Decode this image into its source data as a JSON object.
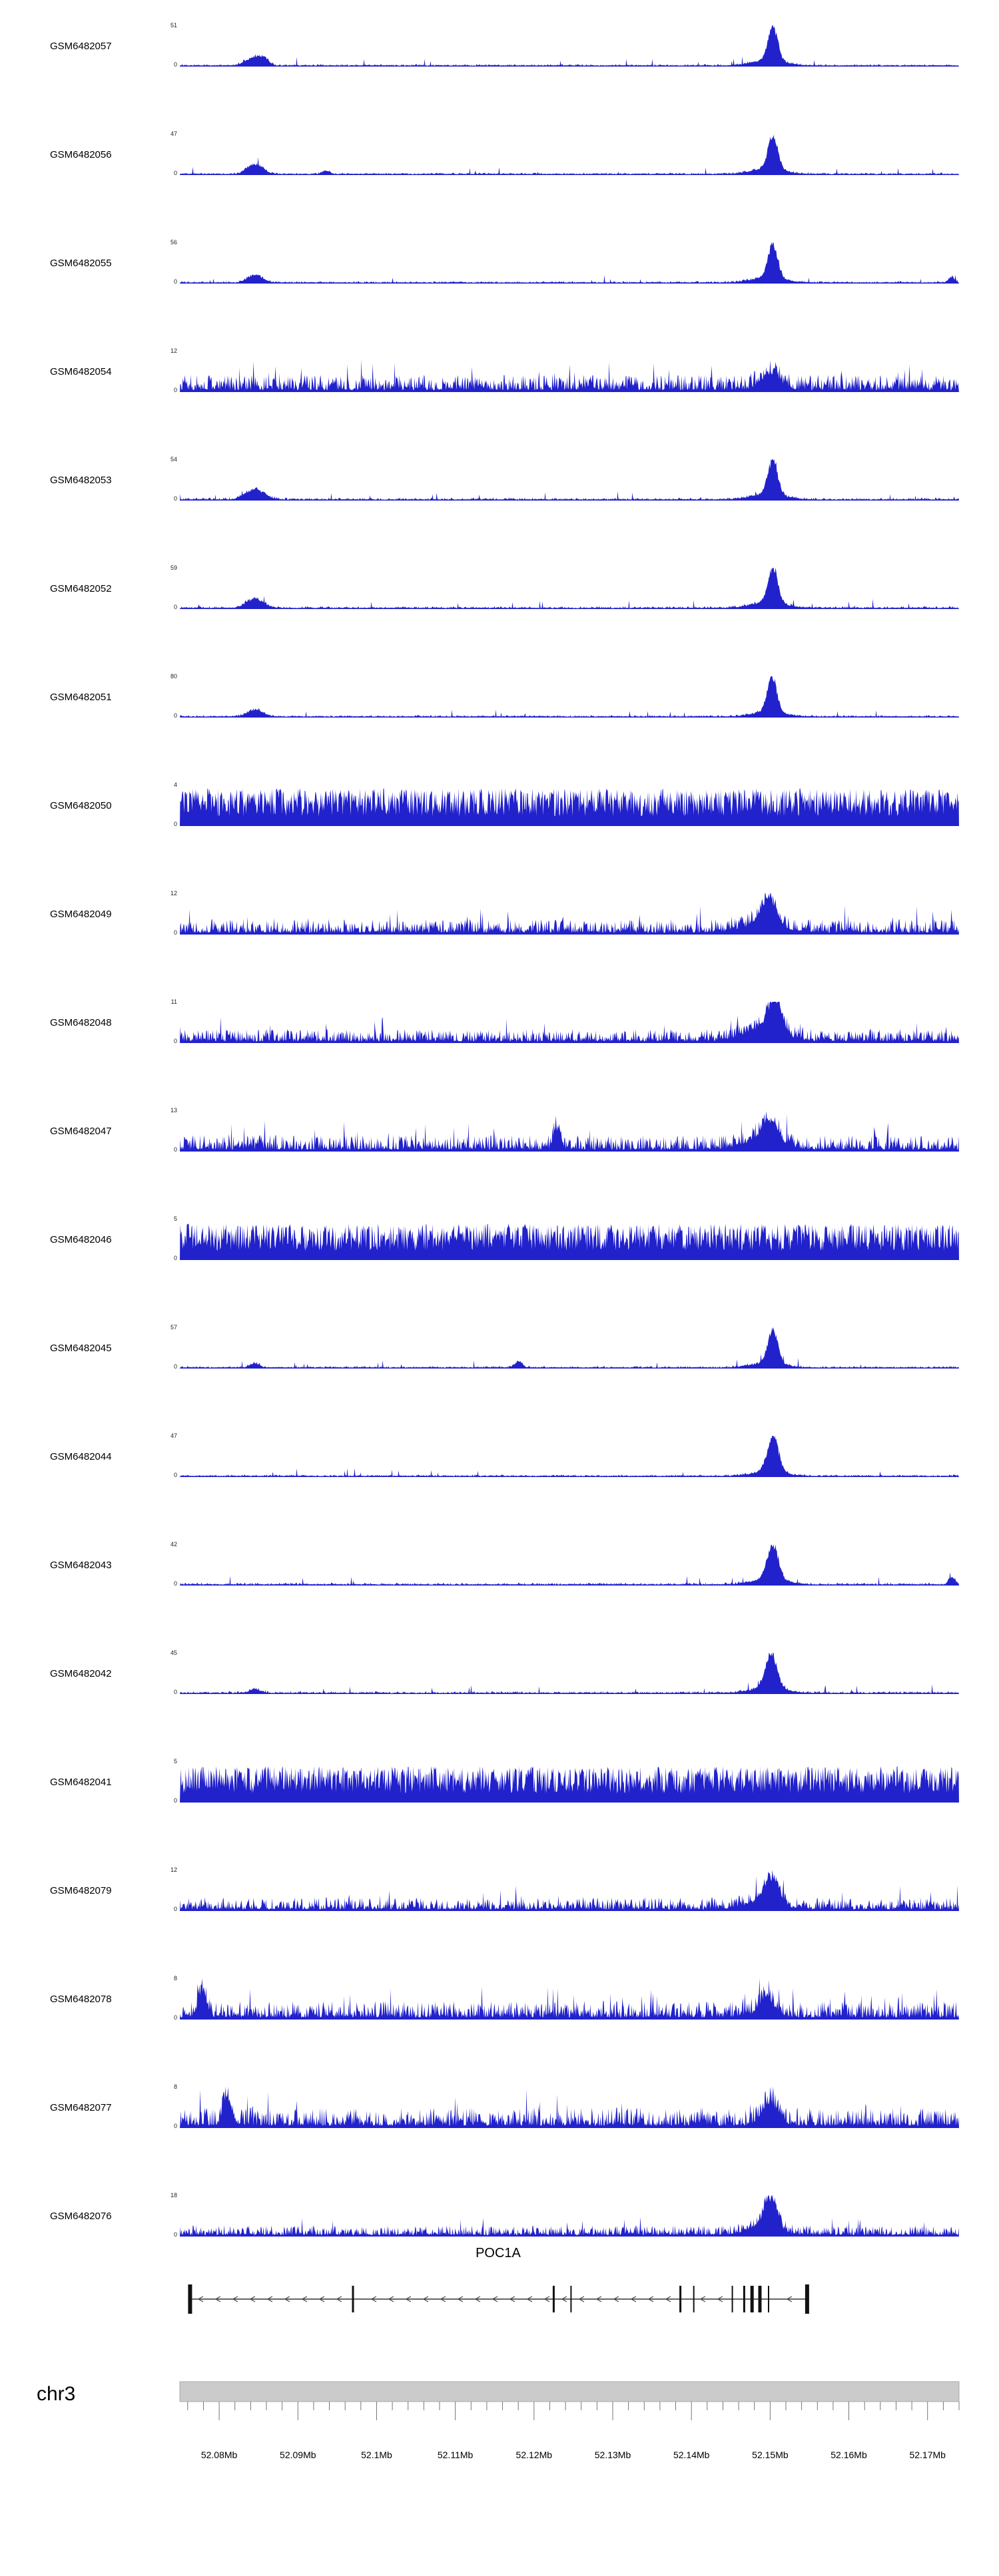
{
  "chart_data": {
    "type": "area",
    "description": "Stacked genome-browser read-coverage tracks (blue area signal) for 21 GEO samples over chr3 around the POC1A gene, with gene model and chromosome coordinate ruler",
    "chromosome": "chr3",
    "signal_color": "#2222cc",
    "x_axis": {
      "min": 52.075,
      "max": 52.174,
      "unit": "Mb",
      "major_tick_step": 0.01,
      "minor_tick_step": 0.002,
      "tick_positions": [
        52.08,
        52.09,
        52.1,
        52.11,
        52.12,
        52.13,
        52.14,
        52.15,
        52.16,
        52.17
      ],
      "tick_labels": [
        "52.08Mb",
        "52.09Mb",
        "52.1Mb",
        "52.11Mb",
        "52.12Mb",
        "52.13Mb",
        "52.14Mb",
        "52.15Mb",
        "52.16Mb",
        "52.17Mb"
      ]
    },
    "tracks": [
      {
        "name": "GSM6482057",
        "ymax": 51,
        "ymin": 0,
        "profile": "peaky",
        "noise": 0.05,
        "peaks": [
          {
            "c": 52.0845,
            "h": 0.26,
            "w": 0.0011
          },
          {
            "c": 52.0858,
            "h": 0.12,
            "w": 0.0005
          },
          {
            "c": 52.1497,
            "h": 0.15,
            "w": 0.0022
          },
          {
            "c": 52.1503,
            "h": 1.0,
            "w": 0.0006
          }
        ]
      },
      {
        "name": "GSM6482056",
        "ymax": 47,
        "ymin": 0,
        "profile": "peaky",
        "noise": 0.05,
        "peaks": [
          {
            "c": 52.0845,
            "h": 0.3,
            "w": 0.001
          },
          {
            "c": 52.0935,
            "h": 0.1,
            "w": 0.0005
          },
          {
            "c": 52.1497,
            "h": 0.15,
            "w": 0.0022
          },
          {
            "c": 52.1503,
            "h": 1.0,
            "w": 0.0006
          }
        ]
      },
      {
        "name": "GSM6482055",
        "ymax": 56,
        "ymin": 0,
        "profile": "peaky",
        "noise": 0.05,
        "peaks": [
          {
            "c": 52.0845,
            "h": 0.22,
            "w": 0.001
          },
          {
            "c": 52.1497,
            "h": 0.14,
            "w": 0.0022
          },
          {
            "c": 52.1503,
            "h": 1.0,
            "w": 0.0006
          },
          {
            "c": 52.173,
            "h": 0.16,
            "w": 0.0004
          }
        ]
      },
      {
        "name": "GSM6482054",
        "ymax": 12,
        "ymin": 0,
        "profile": "noisy",
        "noise": 0.42,
        "peaks": [
          {
            "c": 52.15,
            "h": 0.45,
            "w": 0.0012
          }
        ]
      },
      {
        "name": "GSM6482053",
        "ymax": 54,
        "ymin": 0,
        "profile": "peaky",
        "noise": 0.06,
        "peaks": [
          {
            "c": 52.0845,
            "h": 0.3,
            "w": 0.0012
          },
          {
            "c": 52.1497,
            "h": 0.15,
            "w": 0.0022
          },
          {
            "c": 52.1503,
            "h": 1.0,
            "w": 0.0006
          }
        ]
      },
      {
        "name": "GSM6482052",
        "ymax": 59,
        "ymin": 0,
        "profile": "peaky",
        "noise": 0.06,
        "peaks": [
          {
            "c": 52.0845,
            "h": 0.26,
            "w": 0.0011
          },
          {
            "c": 52.1497,
            "h": 0.16,
            "w": 0.0022
          },
          {
            "c": 52.1503,
            "h": 1.0,
            "w": 0.0006
          }
        ]
      },
      {
        "name": "GSM6482051",
        "ymax": 80,
        "ymin": 0,
        "profile": "peaky",
        "noise": 0.05,
        "peaks": [
          {
            "c": 52.0845,
            "h": 0.2,
            "w": 0.001
          },
          {
            "c": 52.1497,
            "h": 0.13,
            "w": 0.0022
          },
          {
            "c": 52.1502,
            "h": 1.0,
            "w": 0.0006
          }
        ]
      },
      {
        "name": "GSM6482050",
        "ymax": 4,
        "ymin": 0,
        "profile": "dense",
        "noise": 0.92,
        "peaks": []
      },
      {
        "name": "GSM6482049",
        "ymax": 12,
        "ymin": 0,
        "profile": "noisy",
        "noise": 0.38,
        "peaks": [
          {
            "c": 52.149,
            "h": 0.25,
            "w": 0.0025
          },
          {
            "c": 52.1498,
            "h": 0.75,
            "w": 0.0009
          }
        ]
      },
      {
        "name": "GSM6482048",
        "ymax": 11,
        "ymin": 0,
        "profile": "noisy",
        "noise": 0.34,
        "peaks": [
          {
            "c": 52.149,
            "h": 0.3,
            "w": 0.0025
          },
          {
            "c": 52.1505,
            "h": 0.9,
            "w": 0.0009
          }
        ]
      },
      {
        "name": "GSM6482047",
        "ymax": 13,
        "ymin": 0,
        "profile": "noisy",
        "noise": 0.4,
        "peaks": [
          {
            "c": 52.1228,
            "h": 0.6,
            "w": 0.0004
          },
          {
            "c": 52.149,
            "h": 0.3,
            "w": 0.0022
          },
          {
            "c": 52.15,
            "h": 0.6,
            "w": 0.0009
          }
        ]
      },
      {
        "name": "GSM6482046",
        "ymax": 5,
        "ymin": 0,
        "profile": "dense",
        "noise": 0.88,
        "peaks": []
      },
      {
        "name": "GSM6482045",
        "ymax": 57,
        "ymin": 0,
        "profile": "peaky",
        "noise": 0.05,
        "peaks": [
          {
            "c": 52.0845,
            "h": 0.13,
            "w": 0.0006
          },
          {
            "c": 52.118,
            "h": 0.17,
            "w": 0.0005
          },
          {
            "c": 52.1497,
            "h": 0.14,
            "w": 0.0022
          },
          {
            "c": 52.1503,
            "h": 1.0,
            "w": 0.0006
          }
        ]
      },
      {
        "name": "GSM6482044",
        "ymax": 47,
        "ymin": 0,
        "profile": "peaky",
        "noise": 0.05,
        "peaks": [
          {
            "c": 52.1497,
            "h": 0.13,
            "w": 0.0022
          },
          {
            "c": 52.1503,
            "h": 1.0,
            "w": 0.0007
          }
        ]
      },
      {
        "name": "GSM6482043",
        "ymax": 42,
        "ymin": 0,
        "profile": "peaky",
        "noise": 0.06,
        "peaks": [
          {
            "c": 52.1497,
            "h": 0.15,
            "w": 0.0022
          },
          {
            "c": 52.1503,
            "h": 1.0,
            "w": 0.0007
          },
          {
            "c": 52.173,
            "h": 0.2,
            "w": 0.0004
          }
        ]
      },
      {
        "name": "GSM6482042",
        "ymax": 45,
        "ymin": 0,
        "profile": "peaky",
        "noise": 0.06,
        "peaks": [
          {
            "c": 52.0845,
            "h": 0.1,
            "w": 0.0008
          },
          {
            "c": 52.1497,
            "h": 0.15,
            "w": 0.0022
          },
          {
            "c": 52.1501,
            "h": 1.0,
            "w": 0.0007
          }
        ]
      },
      {
        "name": "GSM6482041",
        "ymax": 5,
        "ymin": 0,
        "profile": "dense",
        "noise": 0.88,
        "peaks": []
      },
      {
        "name": "GSM6482079",
        "ymax": 12,
        "ymin": 0,
        "profile": "noisy",
        "noise": 0.33,
        "peaks": [
          {
            "c": 52.149,
            "h": 0.2,
            "w": 0.0022
          },
          {
            "c": 52.15,
            "h": 0.7,
            "w": 0.0009
          }
        ]
      },
      {
        "name": "GSM6482078",
        "ymax": 8,
        "ymin": 0,
        "profile": "noisy",
        "noise": 0.45,
        "peaks": [
          {
            "c": 52.0778,
            "h": 0.8,
            "w": 0.0005
          },
          {
            "c": 52.1495,
            "h": 0.55,
            "w": 0.001
          }
        ]
      },
      {
        "name": "GSM6482077",
        "ymax": 8,
        "ymin": 0,
        "profile": "noisy",
        "noise": 0.5,
        "peaks": [
          {
            "c": 52.081,
            "h": 0.75,
            "w": 0.0005
          },
          {
            "c": 52.15,
            "h": 0.65,
            "w": 0.001
          }
        ]
      },
      {
        "name": "GSM6482076",
        "ymax": 18,
        "ymin": 0,
        "profile": "noisy",
        "noise": 0.27,
        "peaks": [
          {
            "c": 52.149,
            "h": 0.2,
            "w": 0.0022
          },
          {
            "c": 52.15,
            "h": 0.9,
            "w": 0.0008
          }
        ]
      }
    ],
    "gene_track": {
      "gene": "POC1A",
      "strand": "-",
      "start_mb": 52.0763,
      "end_mb": 52.1547,
      "exons": [
        {
          "pos": 52.0763,
          "w": 6,
          "h": 44
        },
        {
          "pos": 52.097,
          "w": 3,
          "h": 40
        },
        {
          "pos": 52.1225,
          "w": 3,
          "h": 40
        },
        {
          "pos": 52.1247,
          "w": 2,
          "h": 40
        },
        {
          "pos": 52.1386,
          "w": 3,
          "h": 40
        },
        {
          "pos": 52.1403,
          "w": 2,
          "h": 40
        },
        {
          "pos": 52.1452,
          "w": 2,
          "h": 40
        },
        {
          "pos": 52.1467,
          "w": 3,
          "h": 40
        },
        {
          "pos": 52.1477,
          "w": 5,
          "h": 40
        },
        {
          "pos": 52.1487,
          "w": 5,
          "h": 40
        },
        {
          "pos": 52.1498,
          "w": 2,
          "h": 40
        },
        {
          "pos": 52.1547,
          "w": 6,
          "h": 44
        }
      ]
    },
    "ruler": {
      "bar_color": "#cbcbcb",
      "bar_border_color": "#999999",
      "tick_color": "#777777"
    }
  }
}
